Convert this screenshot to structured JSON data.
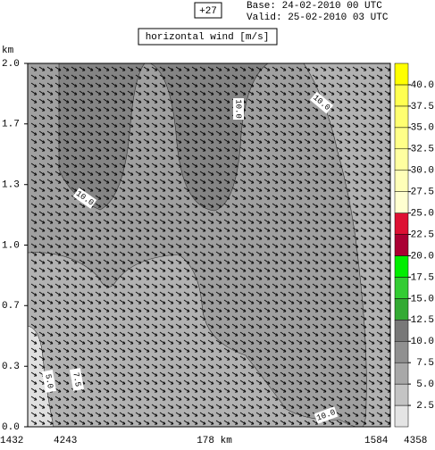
{
  "chart_data": {
    "type": "contour",
    "title": "horizontal wind [m/s]",
    "forecast_step": "+27",
    "base_time": "Base: 24-02-2010  00 UTC",
    "valid_time": "Valid: 25-02-2010  03 UTC",
    "y_label": "km",
    "ylim": [
      0,
      2
    ],
    "yticks": [
      {
        "value": 0,
        "label": "0.0"
      },
      {
        "value": 0.333,
        "label": "0.3"
      },
      {
        "value": 0.667,
        "label": "0.7"
      },
      {
        "value": 1,
        "label": "1.0"
      },
      {
        "value": 1.333,
        "label": "1.3"
      },
      {
        "value": 1.667,
        "label": "1.7"
      },
      {
        "value": 2,
        "label": "2.0"
      }
    ],
    "x_labels": [
      "1432",
      "4243",
      "178 km",
      "1584",
      "4358"
    ],
    "contour_labels": [
      "10.0",
      "10.0",
      "10.0",
      "5.0",
      "7.5",
      "10.0"
    ],
    "colorbar": {
      "levels": [
        0,
        2.5,
        5,
        7.5,
        10,
        12.5,
        15,
        17.5,
        20,
        22.5,
        25,
        27.5,
        30,
        32.5,
        35,
        37.5,
        40,
        42.5
      ],
      "colors": [
        "#e4e4e4",
        "#c4c4c4",
        "#a8a8a8",
        "#909090",
        "#787878",
        "#33aa33",
        "#33cc33",
        "#00ee00",
        "#aa0033",
        "#dd1133",
        "#ffffd0",
        "#ffffb8",
        "#ffffa0",
        "#ffff88",
        "#ffff70",
        "#ffff50",
        "#ffff00"
      ],
      "ticks": [
        2.5,
        {
          "value": 5,
          "label": "5.0"
        },
        7.5,
        {
          "value": 10,
          "label": "10.0"
        },
        12.5,
        {
          "value": 15,
          "label": "15.0"
        },
        17.5,
        {
          "value": 20,
          "label": "20.0"
        },
        22.5,
        {
          "value": 25,
          "label": "25.0"
        },
        27.5,
        {
          "value": 30,
          "label": "30.0"
        },
        32.5,
        {
          "value": 35,
          "label": "35.0"
        },
        37.5,
        {
          "value": 40,
          "label": "40.0"
        }
      ]
    }
  }
}
